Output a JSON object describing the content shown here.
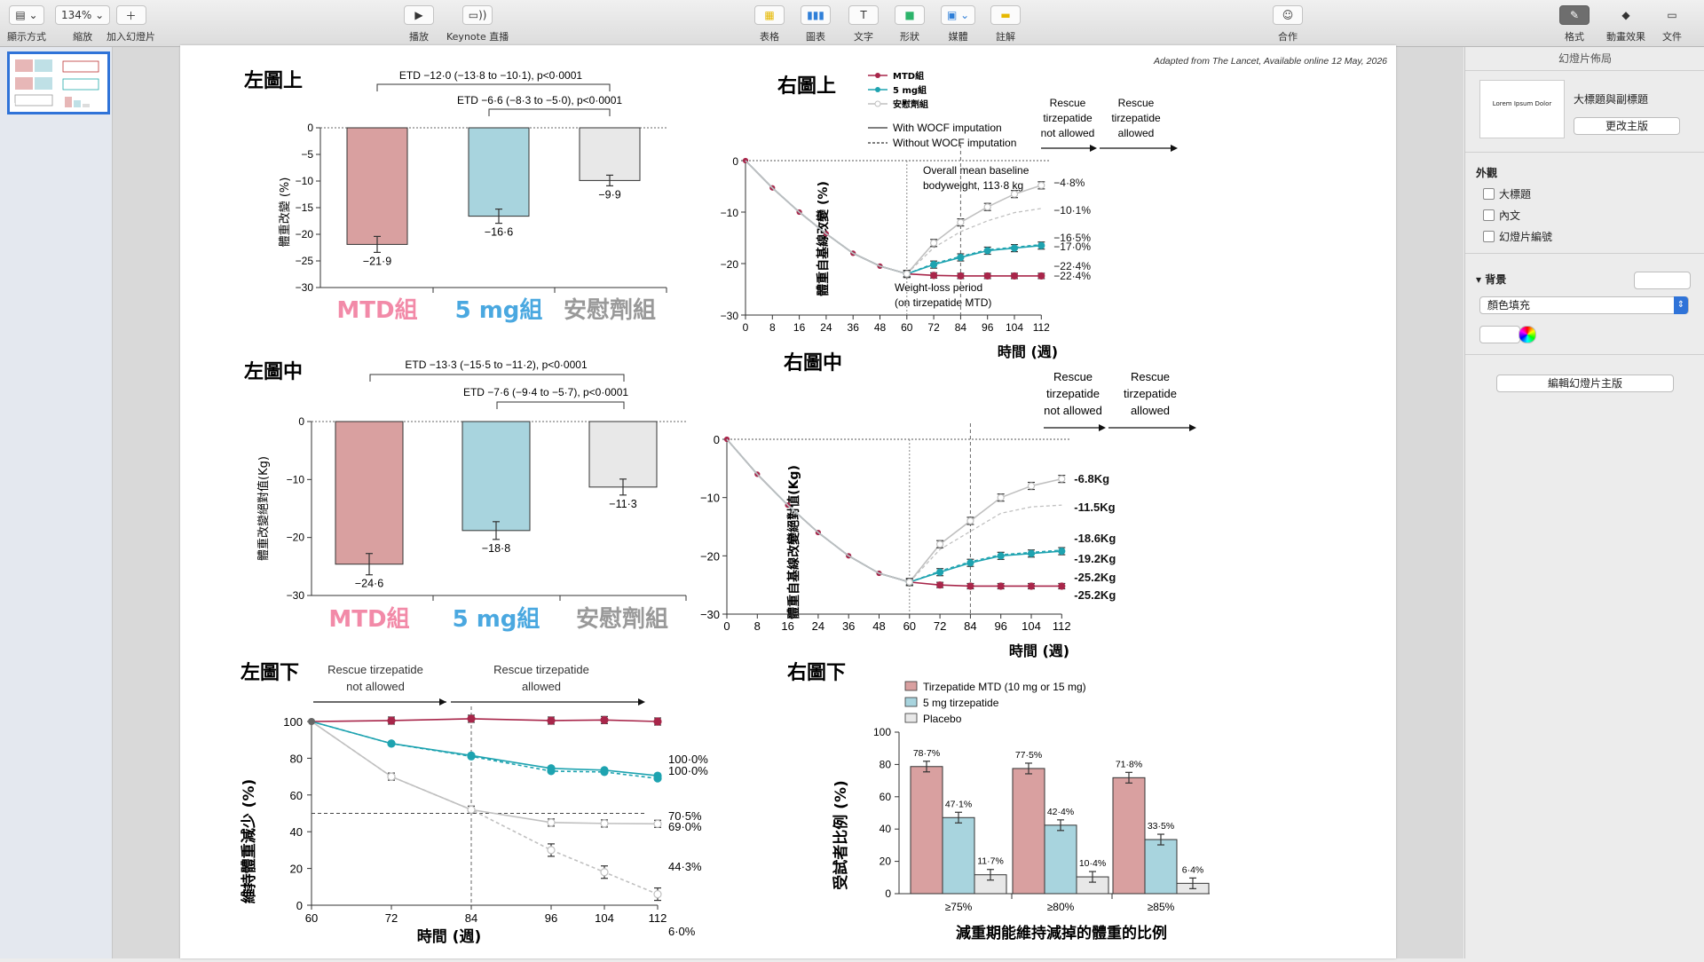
{
  "toolbar": {
    "view_label": "顯示方式",
    "zoom_value": "134%",
    "zoom_label": "縮放",
    "add_slide_label": "加入幻燈片",
    "play_label": "播放",
    "keynote_live_label": "Keynote 直播",
    "table_label": "表格",
    "chart_label": "圖表",
    "text_label": "文字",
    "shape_label": "形狀",
    "media_label": "媒體",
    "comment_label": "註解",
    "collaborate_label": "合作",
    "format_label": "格式",
    "animate_label": "動畫效果",
    "document_label": "文件"
  },
  "slides_panel": {
    "slide_number": "1"
  },
  "right_panel": {
    "title": "幻燈片佈局",
    "layout_thumb_text": "Lorem Ipsum Dolor",
    "layout_name": "大標題與副標題",
    "change_master_button": "更改主版",
    "appearance_heading": "外觀",
    "checkbox_title": "大標題",
    "checkbox_body": "內文",
    "checkbox_slide_number": "幻燈片編號",
    "background_heading": "背景",
    "fill_select_value": "顏色填充",
    "edit_master_button": "編輯幻燈片主版"
  },
  "slide": {
    "source_note": "Adapted from The Lancet, Available online 12 May, 2026",
    "colors": {
      "mtd": "#d9a0a0",
      "mtd_line": "#a8264a",
      "mg5": "#a8d4de",
      "mg5_line": "#1ea3b0",
      "placebo": "#e8e8e8",
      "placebo_line": "#c0c0c0",
      "label_pink": "#f28aa8",
      "label_blue": "#4aa8e0",
      "label_gray": "#888888"
    },
    "panels": {
      "tl": {
        "title": "左圖上",
        "ylabel": "體重改變 (%)",
        "etd1": "ETD −12·0 (−13·8 to −10·1), p<0·0001",
        "etd2": "ETD −6·6 (−8·3 to −5·0), p<0·0001",
        "group_labels": [
          "MTD組",
          "5 mg組",
          "安慰劑組"
        ],
        "ticks": [
          "0",
          "−5",
          "−10",
          "−15",
          "−20",
          "−25",
          "−30"
        ],
        "value_labels": [
          "−21·9",
          "−16·6",
          "−9·9"
        ]
      },
      "ml": {
        "title": "左圖中",
        "ylabel": "體重改變絕對值(Kg)",
        "etd1": "ETD −13·3 (−15·5 to −11·2), p<0·0001",
        "etd2": "ETD −7·6 (−9·4 to −5·7), p<0·0001",
        "group_labels": [
          "MTD組",
          "5 mg組",
          "安慰劑組"
        ],
        "ticks": [
          "0",
          "−10",
          "−20",
          "−30"
        ],
        "value_labels": [
          "−24·6",
          "−18·8",
          "−11·3"
        ]
      },
      "bl": {
        "title": "左圖下",
        "rescue_not": "Rescue tirzepatide not allowed",
        "rescue_allowed": "Rescue tirzepatide allowed",
        "ylabel": "維持體重減少 (%)",
        "xlabel": "時間 (週)",
        "yticks": [
          "0",
          "20",
          "40",
          "60",
          "80",
          "100"
        ],
        "xticks": [
          "60",
          "72",
          "84",
          "96",
          "104",
          "112"
        ],
        "end_labels": [
          "100·0%",
          "100·0%",
          "70·5%",
          "69·0%",
          "44·3%",
          "6·0%"
        ]
      },
      "tr": {
        "title": "右圖上",
        "legend": [
          "MTD組",
          "5 mg組",
          "安慰劑組"
        ],
        "line_legend": [
          "With WOCF imputation",
          "Without WOCF imputation"
        ],
        "rescue_not": "Rescue tirzepatide not allowed",
        "rescue_allowed": "Rescue tirzepatide allowed",
        "baseline_note": "Overall mean baseline bodyweight, 113·8 kg",
        "period_note": "Weight-loss period (on tirzepatide MTD)",
        "ylabel": "體重自基線改變 (%)",
        "xlabel": "時間 (週)",
        "yticks": [
          "0",
          "−10",
          "−20",
          "−30"
        ],
        "xticks": [
          "0",
          "8",
          "16",
          "24",
          "36",
          "48",
          "60",
          "72",
          "84",
          "96",
          "104",
          "112"
        ],
        "end_labels": [
          "−4·8%",
          "−10·1%",
          "−16·5%",
          "−17·0%",
          "−22·4%",
          "−22·4%"
        ]
      },
      "mr": {
        "title": "右圖中",
        "rescue_not": "Rescue tirzepatide not allowed",
        "rescue_allowed": "Rescue tirzepatide allowed",
        "ylabel": "體重自基線改變絕對值(Kg)",
        "xlabel": "時間 (週)",
        "yticks": [
          "0",
          "−10",
          "−20",
          "−30"
        ],
        "xticks": [
          "0",
          "8",
          "16",
          "24",
          "36",
          "48",
          "60",
          "72",
          "84",
          "96",
          "104",
          "112"
        ],
        "end_labels": [
          "-6.8Kg",
          "-11.5Kg",
          "-18.6Kg",
          "-19.2Kg",
          "-25.2Kg",
          "-25.2Kg"
        ]
      },
      "br": {
        "title": "右圖下",
        "legend": [
          "Tirzepatide MTD (10 mg or 15 mg)",
          "5 mg tirzepatide",
          "Placebo"
        ],
        "ylabel": "受試者比例 (%)",
        "xlabel": "減重期能維持減掉的體重的比例",
        "yticks": [
          "0",
          "20",
          "40",
          "60",
          "80",
          "100"
        ],
        "categories": [
          "≥75%",
          "≥80%",
          "≥85%"
        ],
        "value_labels": [
          "78·7%",
          "47·1%",
          "11·7%",
          "77·5%",
          "42·4%",
          "10·4%",
          "71·8%",
          "33·5%",
          "6·4%"
        ]
      }
    }
  },
  "chart_data": [
    {
      "type": "bar",
      "categories": [
        "MTD組",
        "5 mg組",
        "安慰劑組"
      ],
      "values": [
        -21.9,
        -16.6,
        -9.9
      ],
      "ylabel": "體重改變 (%)",
      "ylim": [
        -30,
        0
      ]
    },
    {
      "type": "bar",
      "categories": [
        "MTD組",
        "5 mg組",
        "安慰劑組"
      ],
      "values": [
        -24.6,
        -18.8,
        -11.3
      ],
      "ylabel": "體重改變絕對值(Kg)",
      "ylim": [
        -30,
        0
      ]
    },
    {
      "type": "line",
      "x": [
        60,
        72,
        84,
        96,
        104,
        112
      ],
      "ylim": [
        0,
        100
      ],
      "xlabel": "時間 (週)",
      "ylabel": "維持體重減少 (%)",
      "series": [
        {
          "values": [
            100,
            100.5,
            101.5,
            100.5,
            100.8,
            100.0
          ]
        },
        {
          "values": [
            100,
            88,
            81.5,
            74.5,
            73.5,
            70.5
          ]
        },
        {
          "values": [
            100,
            88,
            81,
            73,
            72.5,
            69.0
          ]
        },
        {
          "values": [
            100,
            70,
            52,
            45,
            44.5,
            44.3
          ]
        },
        {
          "values": [
            100,
            70,
            52,
            30,
            18,
            6.0
          ]
        }
      ]
    },
    {
      "type": "line",
      "x": [
        0,
        8,
        16,
        24,
        36,
        48,
        60,
        72,
        84,
        96,
        104,
        112
      ],
      "ylim": [
        -30,
        0
      ],
      "xlabel": "時間 (週)",
      "ylabel": "體重自基線改變 (%)",
      "series": [
        {
          "name": "MTD組",
          "values": [
            0,
            -5.3,
            -10,
            -14.2,
            -18,
            -20.5,
            -22,
            -22.3,
            -22.4,
            -22.4,
            -22.4,
            -22.4
          ]
        },
        {
          "name": "5 mg組",
          "values": [
            0,
            -5.3,
            -10,
            -14.2,
            -18,
            -20.5,
            -22,
            -20.2,
            -18.8,
            -17.5,
            -17.0,
            -16.5
          ]
        },
        {
          "name": "安慰劑組",
          "values": [
            0,
            -5.3,
            -10,
            -14.2,
            -18,
            -20.5,
            -22,
            -16,
            -12,
            -9,
            -6.5,
            -4.8
          ]
        }
      ]
    },
    {
      "type": "line",
      "x": [
        0,
        8,
        16,
        24,
        36,
        48,
        60,
        72,
        84,
        96,
        104,
        112
      ],
      "ylim": [
        -30,
        0
      ],
      "xlabel": "時間 (週)",
      "ylabel": "體重自基線改變絕對值(Kg)",
      "series": [
        {
          "name": "MTD組",
          "values": [
            0,
            -6,
            -11.3,
            -16,
            -20,
            -23,
            -24.5,
            -25,
            -25.2,
            -25.2,
            -25.2,
            -25.2
          ]
        },
        {
          "name": "5 mg組",
          "values": [
            0,
            -6,
            -11.3,
            -16,
            -20,
            -23,
            -24.5,
            -22.8,
            -21.2,
            -20,
            -19.6,
            -19.2
          ]
        },
        {
          "name": "安慰劑組",
          "values": [
            0,
            -6,
            -11.3,
            -16,
            -20,
            -23,
            -24.5,
            -18,
            -14,
            -10,
            -8,
            -6.8
          ]
        }
      ]
    },
    {
      "type": "bar",
      "categories": [
        "≥75%",
        "≥80%",
        "≥85%"
      ],
      "ylim": [
        0,
        100
      ],
      "ylabel": "受試者比例 (%)",
      "xlabel": "減重期能維持減掉的體重的比例",
      "series": [
        {
          "name": "Tirzepatide MTD (10 mg or 15 mg)",
          "values": [
            78.7,
            77.5,
            71.8
          ]
        },
        {
          "name": "5 mg tirzepatide",
          "values": [
            47.1,
            42.4,
            33.5
          ]
        },
        {
          "name": "Placebo",
          "values": [
            11.7,
            10.4,
            6.4
          ]
        }
      ]
    }
  ]
}
